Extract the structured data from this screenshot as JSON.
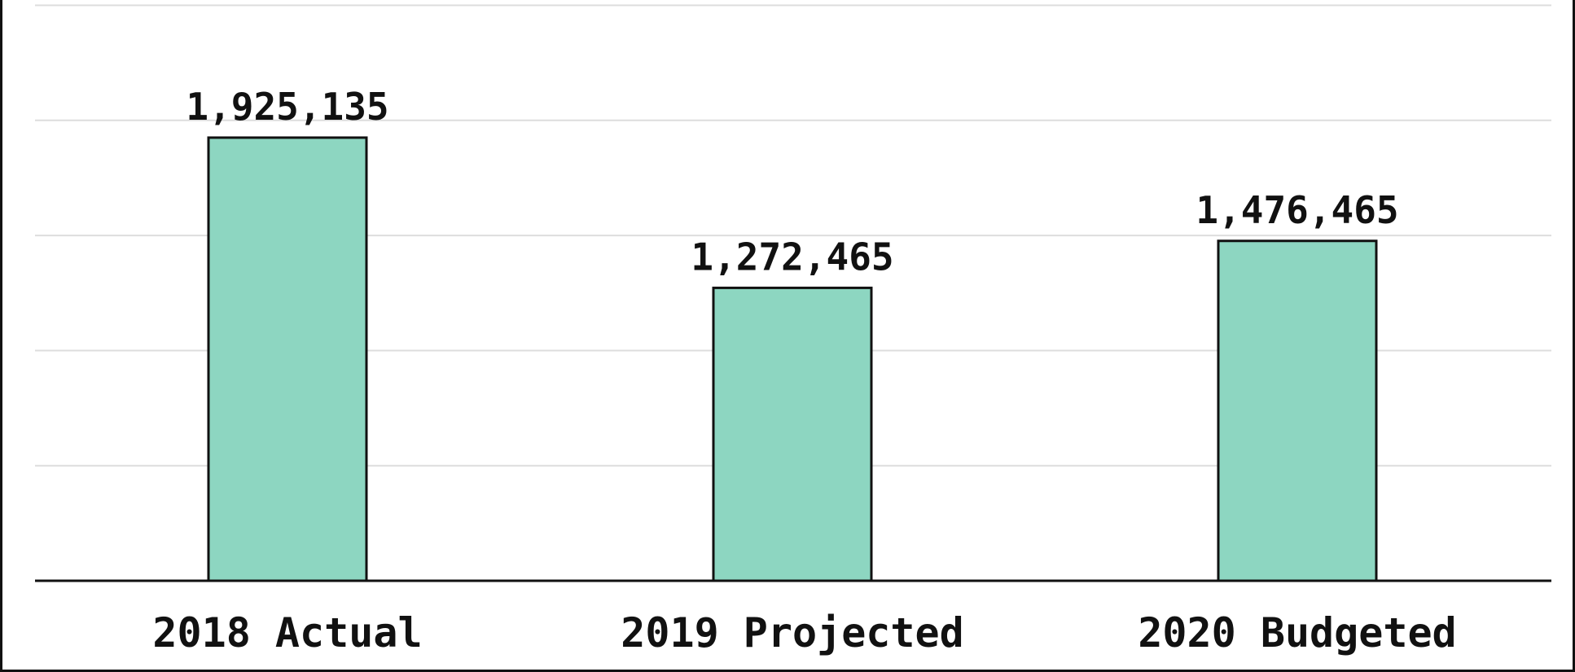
{
  "chart_data": {
    "type": "bar",
    "categories": [
      "2018 Actual",
      "2019 Projected",
      "2020 Budgeted"
    ],
    "values": [
      1925135,
      1272465,
      1476465
    ],
    "value_labels": [
      "1,925,135",
      "1,272,465",
      "1,476,465"
    ],
    "ylim": [
      0,
      2500000
    ],
    "grid": true,
    "legend": "none",
    "title": "",
    "xlabel": "",
    "ylabel": ""
  },
  "colors": {
    "bar_fill": "#8dd6c1",
    "bar_stroke": "#111111",
    "grid": "#dddddd",
    "axis": "#111111"
  }
}
